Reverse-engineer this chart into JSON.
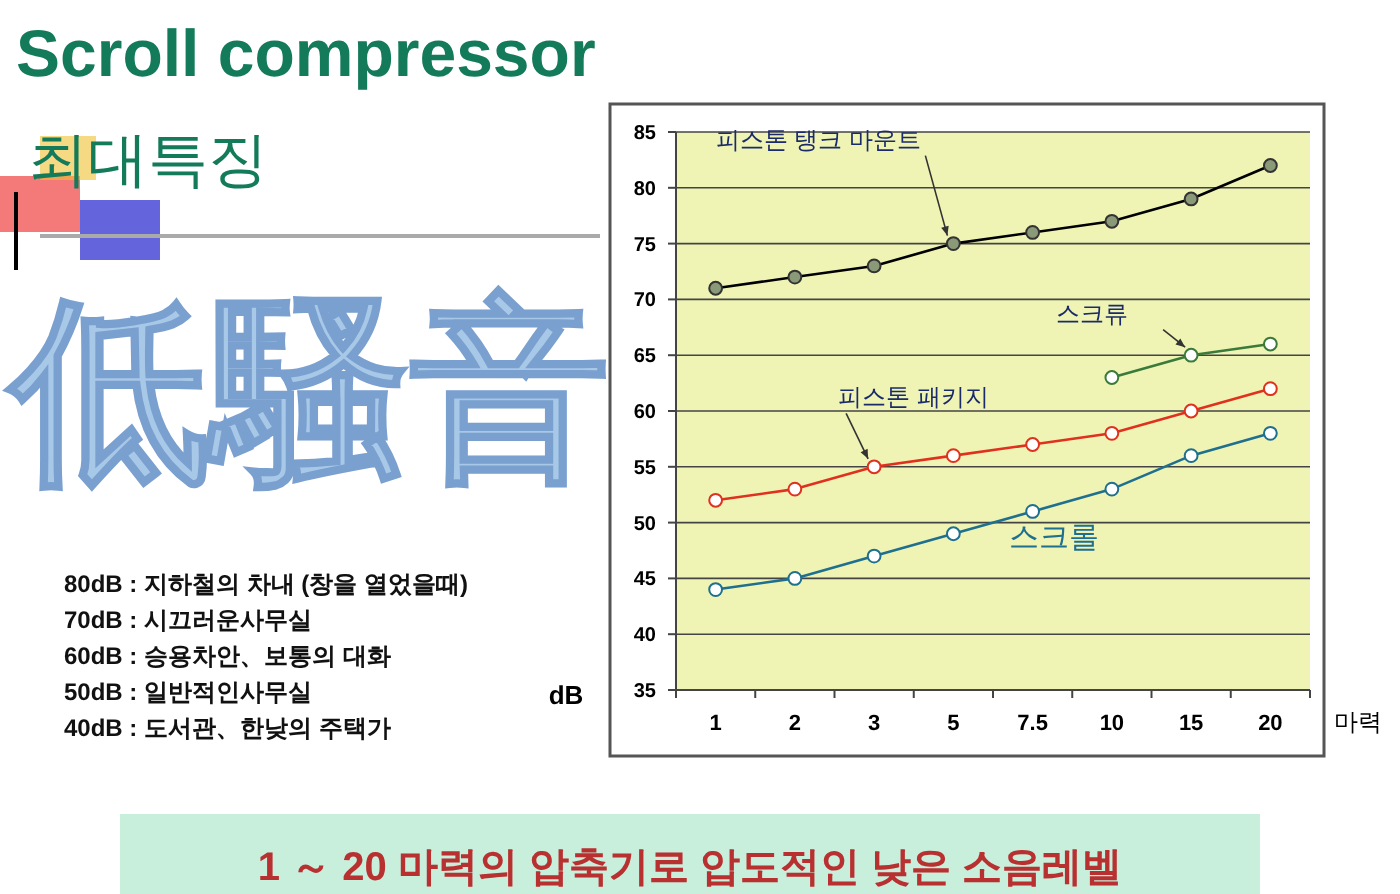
{
  "chart_data": {
    "type": "line",
    "title": "Scroll compressor",
    "subtitle": "최대특징",
    "xlabel": "마력",
    "ylabel": "dB",
    "categories": [
      "1",
      "2",
      "3",
      "5",
      "7.5",
      "10",
      "15",
      "20"
    ],
    "series": [
      {
        "name": "피스톤 탱크 마운트",
        "color": "#000000",
        "values": [
          71,
          72,
          73,
          75,
          76,
          77,
          79,
          82
        ]
      },
      {
        "name": "스크류",
        "color": "#3a7a3a",
        "values": [
          null,
          null,
          null,
          null,
          null,
          63,
          65,
          66
        ]
      },
      {
        "name": "피스톤 패키지",
        "color": "#e0301e",
        "values": [
          52,
          53,
          55,
          56,
          57,
          58,
          60,
          62
        ]
      },
      {
        "name": "스크롤",
        "color": "#1f6f8f",
        "values": [
          44,
          45,
          47,
          49,
          51,
          53,
          56,
          58
        ]
      }
    ],
    "ylim": [
      35,
      85
    ],
    "yticks": [
      35,
      40,
      45,
      50,
      55,
      60,
      65,
      70,
      75,
      80,
      85
    ],
    "grid": "y",
    "legend": false,
    "marker": "circle",
    "line_style": "solid",
    "annotations": [
      "低騷音",
      "80dB : 지하철의 차내 (창을 열었을때)",
      "70dB : 시끄러운사무실",
      "60dB : 승용차안、보통의 대화",
      "50dB : 일반적인사무실",
      "40dB : 도서관、한낮의 주택가",
      "1 ～ 20 마력의 압축기로 압도적인 낮은 소음레벨"
    ]
  }
}
